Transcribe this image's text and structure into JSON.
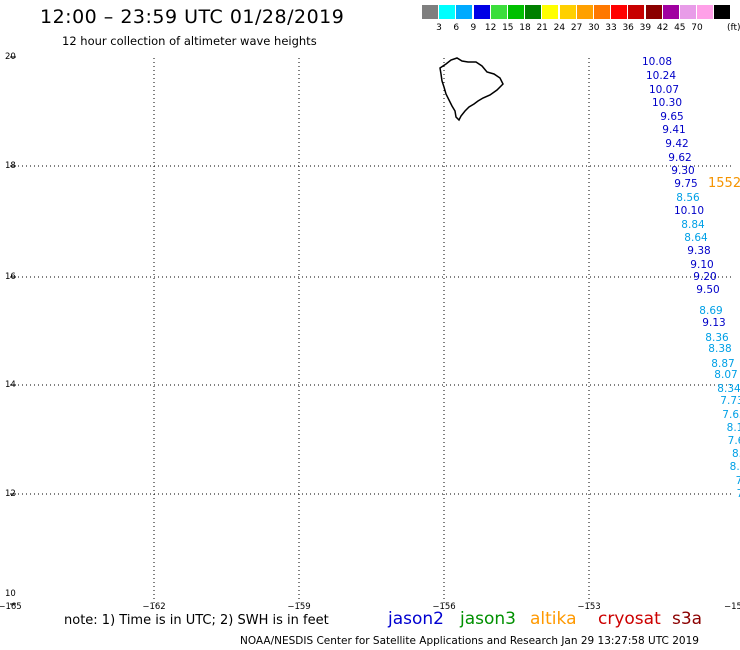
{
  "header": {
    "title": "12:00 – 23:59 UTC 01/28/2019",
    "subtitle": "12 hour collection of altimeter wave heights"
  },
  "color_scale": {
    "colors": [
      "#7f7f7f",
      "#00ffff",
      "#00aaff",
      "#0000e6",
      "#3cde3c",
      "#00c000",
      "#008000",
      "#ffff00",
      "#ffd000",
      "#ffa000",
      "#ff7800",
      "#ff0000",
      "#c80000",
      "#8b0000",
      "#a000a0",
      "#e89ce8",
      "#ffa0e8",
      "#000000"
    ],
    "labels": [
      "3",
      "6",
      "9",
      "12",
      "15",
      "18",
      "21",
      "24",
      "27",
      "30",
      "33",
      "36",
      "39",
      "42",
      "45",
      "70"
    ],
    "units": "(ft)"
  },
  "axes": {
    "lat_labels": [
      "20",
      "18",
      "16",
      "14",
      "12",
      "10"
    ],
    "lon_labels": [
      "−165",
      "−162",
      "−159",
      "−156",
      "−153",
      "−15"
    ]
  },
  "swh_labels": [
    {
      "text": "10.08",
      "color": "#0000c8"
    },
    {
      "text": "10.24",
      "color": "#0000c8"
    },
    {
      "text": "10.07",
      "color": "#0000c8"
    },
    {
      "text": "10.30",
      "color": "#0000c8"
    },
    {
      "text": "9.65",
      "color": "#0000c8"
    },
    {
      "text": "9.41",
      "color": "#0000c8"
    },
    {
      "text": "9.42",
      "color": "#0000c8"
    },
    {
      "text": "9.62",
      "color": "#0000c8"
    },
    {
      "text": "9.30",
      "color": "#0000c8"
    },
    {
      "text": "9.75",
      "color": "#0000c8"
    },
    {
      "text": "8.56",
      "color": "#00a0e6"
    },
    {
      "text": "10.10",
      "color": "#0000c8"
    },
    {
      "text": "8.84",
      "color": "#00a0e6"
    },
    {
      "text": "8.64",
      "color": "#00a0e6"
    },
    {
      "text": "9.38",
      "color": "#0000c8"
    },
    {
      "text": "9.10",
      "color": "#0000c8"
    },
    {
      "text": "9.20",
      "color": "#0000c8"
    },
    {
      "text": "9.50",
      "color": "#0000c8"
    },
    {
      "text": "8.69",
      "color": "#00a0e6"
    },
    {
      "text": "9.13",
      "color": "#0000c8"
    },
    {
      "text": "8.36",
      "color": "#00a0e6"
    },
    {
      "text": "8.38",
      "color": "#00a0e6"
    },
    {
      "text": "8.87",
      "color": "#00a0e6"
    },
    {
      "text": "8.07",
      "color": "#00a0e6"
    },
    {
      "text": "8.34",
      "color": "#00a0e6"
    },
    {
      "text": "7.73",
      "color": "#00a0e6"
    },
    {
      "text": "7.65",
      "color": "#00a0e6"
    },
    {
      "text": "8.1",
      "color": "#00a0e6"
    },
    {
      "text": "7.6",
      "color": "#00a0e6"
    },
    {
      "text": "8.",
      "color": "#00a0e6"
    },
    {
      "text": "8.0",
      "color": "#00a0e6"
    },
    {
      "text": "7",
      "color": "#00a0e6"
    },
    {
      "text": "7",
      "color": "#00a0e6"
    }
  ],
  "orange_label": {
    "text": "1552",
    "color": "#f59400"
  },
  "footer": {
    "note": "note: 1) Time is in UTC; 2) SWH is in feet",
    "missions": [
      {
        "name": "jason2",
        "color": "#0000d0"
      },
      {
        "name": "jason3",
        "color": "#009000"
      },
      {
        "name": "altika",
        "color": "#ff9900"
      },
      {
        "name": "cryosat",
        "color": "#cc0000"
      },
      {
        "name": "s3a",
        "color": "#8b0000"
      }
    ],
    "credit": "NOAA/NESDIS Center for Satellite Applications and Research    Jan 29 13:27:58 UTC 2019"
  }
}
